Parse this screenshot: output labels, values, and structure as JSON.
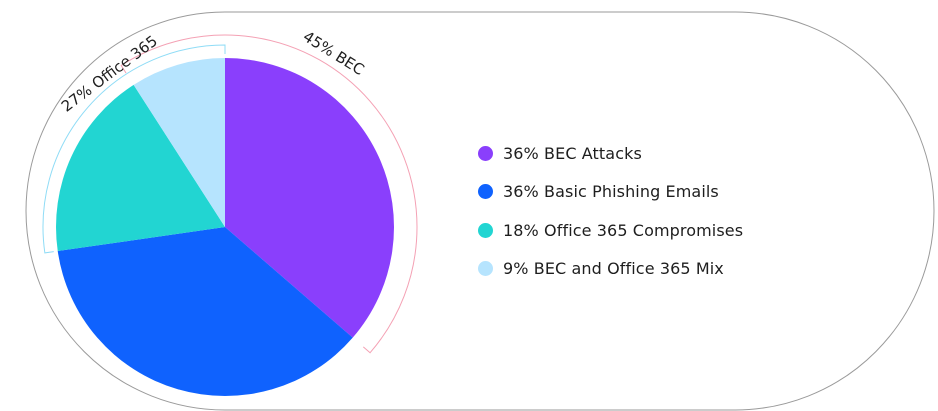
{
  "chart_data": {
    "type": "pie",
    "categories": [
      "36% BEC Attacks",
      "36% Basic Phishing Emails",
      "18% Office 365 Compromises",
      "9% BEC and Office 365 Mix"
    ],
    "values": [
      36,
      36,
      18,
      9
    ],
    "colors": [
      "#8a3ffc",
      "#0f62fe",
      "#22d5d2",
      "#b6e4fe"
    ],
    "group_annotations": [
      {
        "label": "45% BEC",
        "slices": [
          "36% BEC Attacks",
          "9% BEC and Office 365 Mix"
        ],
        "color": "#f4a1b4"
      },
      {
        "label": "27% Office 365",
        "slices": [
          "18% Office 365 Compromises",
          "9% BEC and Office 365 Mix"
        ],
        "color": "#8fdcf6"
      }
    ],
    "legend": {
      "position": "right",
      "items": [
        {
          "label": "36% BEC Attacks",
          "color": "#8a3ffc"
        },
        {
          "label": "36% Basic Phishing Emails",
          "color": "#0f62fe"
        },
        {
          "label": "18% Office 365 Compromises",
          "color": "#22d5d2"
        },
        {
          "label": "9% BEC and Office 365 Mix",
          "color": "#b6e4fe"
        }
      ]
    },
    "outline_color": "#9a9a9a"
  }
}
